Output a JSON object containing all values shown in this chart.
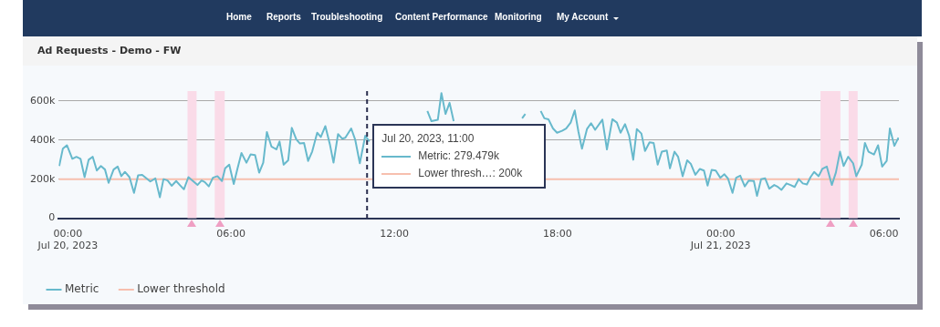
{
  "chart_data": {
    "type": "line",
    "title": "Ad Requests - Demo - FW",
    "annotations": [
      "Home",
      "Reports",
      "Troubleshooting",
      "Content Performance",
      "Monitoring",
      "My Account",
      "Jul 20, 2023, 11:00",
      "Metric: 279.479k",
      "Lower thresh…: 200k"
    ],
    "xlim": [
      "2023-07-19T23:40",
      "2023-07-21T06:33"
    ],
    "xticks": [
      {
        "value": "2023-07-20T00:00",
        "label": "00:00\nJul 20, 2023"
      },
      {
        "value": "2023-07-20T06:00",
        "label": "06:00"
      },
      {
        "value": "2023-07-20T12:00",
        "label": "12:00"
      },
      {
        "value": "2023-07-20T18:00",
        "label": "18:00"
      },
      {
        "value": "2023-07-21T00:00",
        "label": "00:00\nJul 21, 2023"
      },
      {
        "value": "2023-07-21T06:00",
        "label": "06:00"
      }
    ],
    "ylim": [
      0,
      650
    ],
    "yticks": [
      0,
      {
        "value": 200,
        "label": "200k"
      },
      {
        "value": 400,
        "label": "400k"
      },
      {
        "value": 600,
        "label": "600k"
      }
    ],
    "grid": "y",
    "legend": "bottom left",
    "line_style": "solid",
    "marker": "none",
    "series": [
      {
        "name": "Metric",
        "color": "#67b9cc",
        "x": [
          "2023-07-19T23:41",
          "2023-07-19T23:49",
          "2023-07-19T23:58",
          "2023-07-20T00:10",
          "2023-07-20T00:19",
          "2023-07-20T00:28",
          "2023-07-20T00:37",
          "2023-07-20T00:46",
          "2023-07-20T00:55",
          "2023-07-20T01:04",
          "2023-07-20T01:13",
          "2023-07-20T01:22",
          "2023-07-20T01:30",
          "2023-07-20T01:41",
          "2023-07-20T01:50",
          "2023-07-20T01:58",
          "2023-07-20T02:06",
          "2023-07-20T02:16",
          "2023-07-20T02:26",
          "2023-07-20T02:35",
          "2023-07-20T02:44",
          "2023-07-20T02:54",
          "2023-07-20T03:02",
          "2023-07-20T03:13",
          "2023-07-20T03:23",
          "2023-07-20T03:31",
          "2023-07-20T03:40",
          "2023-07-20T03:49",
          "2023-07-20T03:59",
          "2023-07-20T04:07",
          "2023-07-20T04:16",
          "2023-07-20T04:26",
          "2023-07-20T04:36",
          "2023-07-20T04:46",
          "2023-07-20T04:55",
          "2023-07-20T05:02",
          "2023-07-20T05:11",
          "2023-07-20T05:20",
          "2023-07-20T05:30",
          "2023-07-20T05:40",
          "2023-07-20T05:47",
          "2023-07-20T05:56",
          "2023-07-20T06:06",
          "2023-07-20T06:14",
          "2023-07-20T06:23",
          "2023-07-20T06:34",
          "2023-07-20T06:43",
          "2023-07-20T06:53",
          "2023-07-20T07:02",
          "2023-07-20T07:11",
          "2023-07-20T07:19",
          "2023-07-20T07:29",
          "2023-07-20T07:40",
          "2023-07-20T07:47",
          "2023-07-20T07:56",
          "2023-07-20T08:06",
          "2023-07-20T08:14",
          "2023-07-20T08:24",
          "2023-07-20T08:32",
          "2023-07-20T08:41",
          "2023-07-20T08:50",
          "2023-07-20T08:59",
          "2023-07-20T09:10",
          "2023-07-20T09:18",
          "2023-07-20T09:28",
          "2023-07-20T09:38",
          "2023-07-20T09:46",
          "2023-07-20T09:56",
          "2023-07-20T10:05",
          "2023-07-20T10:12",
          "2023-07-20T10:25",
          "2023-07-20T10:34",
          "2023-07-20T10:44",
          "2023-07-20T10:56",
          "2023-07-20T11:05",
          "2023-07-20T11:30",
          "2023-07-20T13:13",
          "2023-07-20T13:22",
          "2023-07-20T13:36",
          "2023-07-20T13:44",
          "2023-07-20T13:53",
          "2023-07-20T14:02",
          "2023-07-20T14:11",
          "2023-07-20T14:24",
          "2023-07-20T16:42",
          "2023-07-20T16:49",
          "2023-07-20T17:06",
          "2023-07-20T17:23",
          "2023-07-20T17:31",
          "2023-07-20T17:40",
          "2023-07-20T17:50",
          "2023-07-20T17:59",
          "2023-07-20T18:10",
          "2023-07-20T18:19",
          "2023-07-20T18:29",
          "2023-07-20T18:38",
          "2023-07-20T18:46",
          "2023-07-20T18:54",
          "2023-07-20T19:05",
          "2023-07-20T19:14",
          "2023-07-20T19:23",
          "2023-07-20T19:39",
          "2023-07-20T19:49",
          "2023-07-20T20:01",
          "2023-07-20T20:11",
          "2023-07-20T20:19",
          "2023-07-20T20:29",
          "2023-07-20T20:38",
          "2023-07-20T20:47",
          "2023-07-20T20:55",
          "2023-07-20T21:05",
          "2023-07-20T21:13",
          "2023-07-20T21:23",
          "2023-07-20T21:32",
          "2023-07-20T21:41",
          "2023-07-20T21:50",
          "2023-07-20T22:01",
          "2023-07-20T22:08",
          "2023-07-20T22:18",
          "2023-07-20T22:26",
          "2023-07-20T22:36",
          "2023-07-20T22:46",
          "2023-07-20T22:54",
          "2023-07-20T23:04",
          "2023-07-20T23:14",
          "2023-07-20T23:23",
          "2023-07-20T23:31",
          "2023-07-20T23:40",
          "2023-07-20T23:49",
          "2023-07-20T23:59",
          "2023-07-21T00:08",
          "2023-07-21T00:16",
          "2023-07-21T00:26",
          "2023-07-21T00:34",
          "2023-07-21T00:43",
          "2023-07-21T00:53",
          "2023-07-21T01:02",
          "2023-07-21T01:13",
          "2023-07-21T01:20",
          "2023-07-21T01:29",
          "2023-07-21T01:38",
          "2023-07-21T01:47",
          "2023-07-21T01:58",
          "2023-07-21T02:06",
          "2023-07-21T02:14",
          "2023-07-21T02:25",
          "2023-07-21T02:34",
          "2023-07-21T02:43",
          "2023-07-21T02:52",
          "2023-07-21T03:01",
          "2023-07-21T03:10",
          "2023-07-21T03:18",
          "2023-07-21T03:26",
          "2023-07-21T03:36",
          "2023-07-21T03:44",
          "2023-07-21T03:54",
          "2023-07-21T04:05",
          "2023-07-21T04:14",
          "2023-07-21T04:23",
          "2023-07-21T04:31",
          "2023-07-21T04:41",
          "2023-07-21T04:52",
          "2023-07-21T04:59",
          "2023-07-21T05:11",
          "2023-07-21T05:18",
          "2023-07-21T05:26",
          "2023-07-21T05:38",
          "2023-07-21T05:47",
          "2023-07-21T05:56",
          "2023-07-21T06:06",
          "2023-07-21T06:13",
          "2023-07-21T06:23",
          "2023-07-21T06:32"
        ],
        "values": [
          267,
          355,
          373,
          304,
          314,
          304,
          210,
          299,
          314,
          244,
          267,
          249,
          181,
          249,
          264,
          215,
          237,
          210,
          130,
          219,
          222,
          203,
          188,
          204,
          107,
          200,
          193,
          166,
          190,
          170,
          148,
          210,
          190,
          170,
          193,
          185,
          163,
          207,
          215,
          190,
          255,
          274,
          175,
          252,
          333,
          284,
          326,
          323,
          233,
          284,
          441,
          367,
          352,
          392,
          274,
          296,
          462,
          403,
          382,
          385,
          293,
          341,
          437,
          415,
          471,
          378,
          284,
          430,
          407,
          411,
          459,
          400,
          281,
          422,
          392,
          null,
          548,
          496,
          503,
          640,
          533,
          590,
          496,
          null,
          511,
          533,
          null,
          548,
          511,
          506,
          459,
          437,
          447,
          459,
          489,
          551,
          444,
          355,
          456,
          486,
          452,
          504,
          352,
          506,
          489,
          437,
          481,
          422,
          299,
          456,
          433,
          344,
          388,
          385,
          274,
          340,
          346,
          255,
          340,
          314,
          215,
          296,
          278,
          222,
          252,
          244,
          167,
          247,
          244,
          207,
          225,
          203,
          130,
          207,
          218,
          163,
          193,
          190,
          114,
          200,
          204,
          151,
          170,
          160,
          145,
          178,
          170,
          160,
          200,
          178,
          173,
          210,
          237,
          215,
          252,
          264,
          170,
          234,
          340,
          267,
          314,
          281,
          215,
          274,
          385,
          340,
          326,
          373,
          264,
          293,
          459,
          370,
          412
        ]
      },
      {
        "name": "Lower threshold",
        "color": "#f7bfae",
        "x": [
          "2023-07-19T23:40",
          "2023-07-21T06:33"
        ],
        "values": [
          200,
          200
        ]
      }
    ],
    "ref_lines": [
      {
        "axis": "x",
        "value": "2023-07-20T11:00",
        "color": "#2b2f4f",
        "line_style": "dashed"
      }
    ],
    "bands": [
      {
        "axis": "x",
        "from": "2023-07-20T04:24",
        "to": "2023-07-20T04:44",
        "color": "#fadbe8"
      },
      {
        "axis": "x",
        "from": "2023-07-20T05:24",
        "to": "2023-07-20T05:46",
        "color": "#fadbe8"
      },
      {
        "axis": "x",
        "from": "2023-07-21T03:40",
        "to": "2023-07-21T04:24",
        "color": "#fadbe8"
      },
      {
        "axis": "x",
        "from": "2023-07-21T04:42",
        "to": "2023-07-21T05:02",
        "color": "#fadbe8"
      }
    ]
  }
}
